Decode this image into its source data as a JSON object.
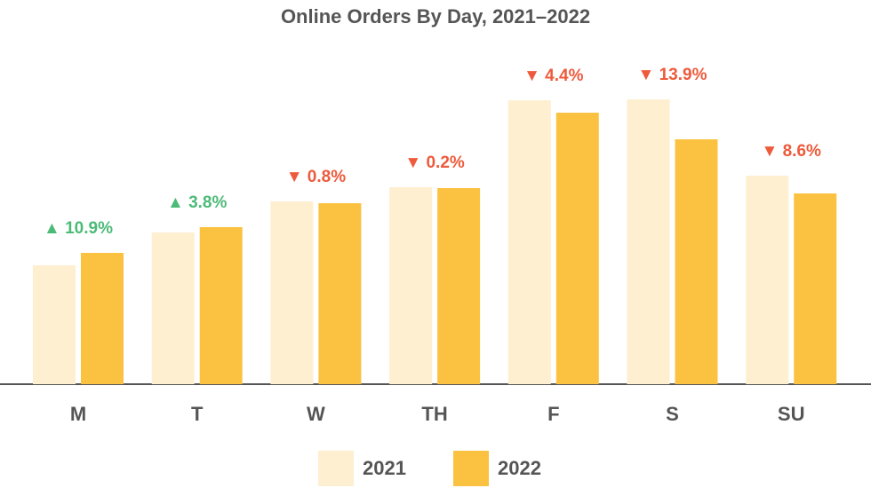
{
  "chart_data": {
    "type": "bar",
    "title": "Online Orders By Day, 2021–2022",
    "categories": [
      "M",
      "T",
      "W",
      "TH",
      "F",
      "S",
      "SU"
    ],
    "series": [
      {
        "name": "2021",
        "color": "#fdefd0",
        "values": [
          134,
          171,
          206,
          222,
          320,
          321,
          235
        ]
      },
      {
        "name": "2022",
        "color": "#fbc242",
        "values": [
          148,
          177,
          204,
          221,
          306,
          276,
          215
        ]
      }
    ],
    "change": {
      "values": [
        10.9,
        3.8,
        -0.8,
        -0.2,
        -4.4,
        -13.9,
        -8.6
      ],
      "value_labels": [
        "▲ 10.9%",
        "▲ 3.8%",
        "▼ 0.8%",
        "▼ 0.2%",
        "▼ 4.4%",
        "▼ 13.9%",
        "▼ 8.6%"
      ],
      "up_color": "#4cbb77",
      "down_color": "#ee5a3c"
    }
  }
}
